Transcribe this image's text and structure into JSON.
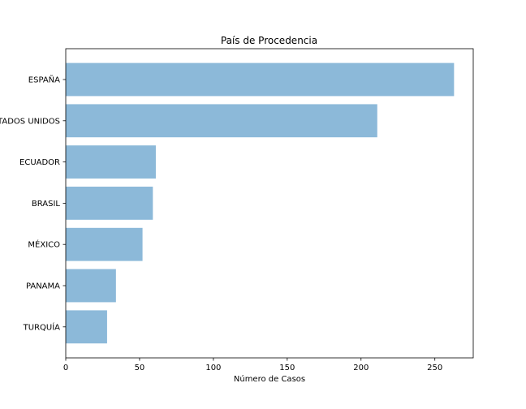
{
  "chart_data": {
    "type": "bar",
    "orientation": "horizontal",
    "title": "País de Procedencia",
    "xlabel": "Número de Casos",
    "ylabel": "",
    "categories": [
      "ESPAÑA",
      "ESTADOS UNIDOS",
      "ECUADOR",
      "BRASIL",
      "MÉXICO",
      "PANAMA",
      "TURQUÍA"
    ],
    "values": [
      263,
      211,
      61,
      59,
      52,
      34,
      28
    ],
    "xlim": [
      0,
      276
    ],
    "xticks": [
      0,
      50,
      100,
      150,
      200,
      250
    ],
    "grid": false,
    "legend": "none",
    "bar_color": "#8cb9d9"
  }
}
